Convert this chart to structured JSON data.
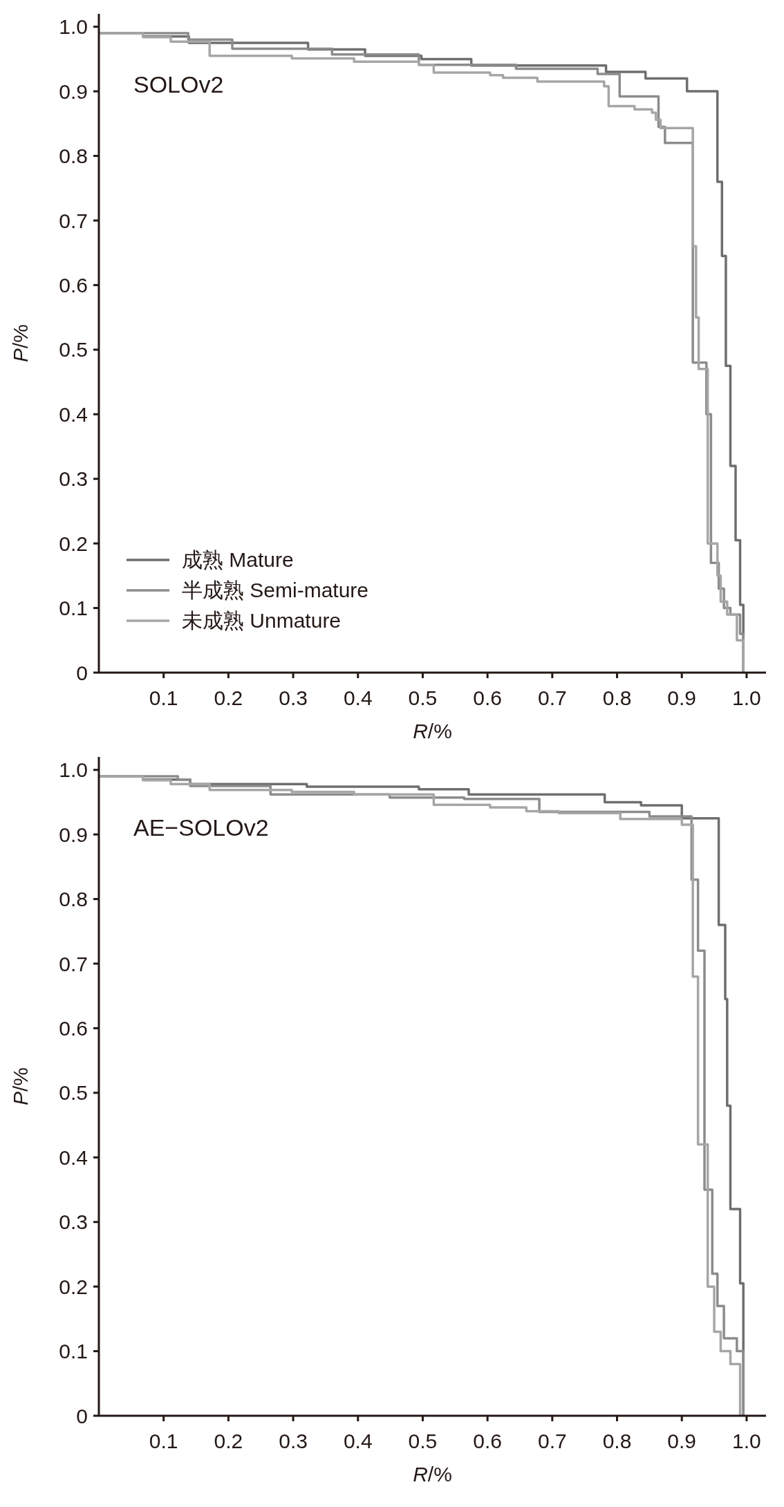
{
  "chart_data": [
    {
      "type": "step",
      "annotations": [
        "SOLOv2"
      ],
      "xlabel": "R/%",
      "ylabel": "P/%",
      "xlim": [
        0,
        1.03
      ],
      "ylim": [
        0,
        1.02
      ],
      "xticks": [
        0.1,
        0.2,
        0.3,
        0.4,
        0.5,
        0.6,
        0.7,
        0.8,
        0.9,
        {
          "value": 1,
          "label": "1.0"
        }
      ],
      "yticks": [
        0,
        0.1,
        0.2,
        0.3,
        0.4,
        0.5,
        0.6,
        0.7,
        0.8,
        0.9,
        {
          "value": 1,
          "label": "1.0"
        }
      ],
      "legend": "bottom left",
      "grid": false,
      "marker": "none",
      "line_style": "solid",
      "series": [
        {
          "name": "成熟 Mature",
          "color": "#6e6e6e",
          "x": [
            0,
            0.068,
            0.139,
            0.323,
            0.411,
            0.498,
            0.575,
            0.783,
            0.844,
            0.908,
            0.955,
            0.962,
            0.968,
            0.975,
            0.983,
            0.99,
            0.995
          ],
          "values": [
            0.99,
            0.985,
            0.975,
            0.965,
            0.955,
            0.95,
            0.94,
            0.93,
            0.92,
            0.9,
            0.76,
            0.645,
            0.475,
            0.32,
            0.205,
            0.105,
            0
          ]
        },
        {
          "name": "半成熟 Semi-mature",
          "color": "#8c8c8c",
          "x": [
            0,
            0.138,
            0.206,
            0.36,
            0.494,
            0.644,
            0.77,
            0.804,
            0.864,
            0.874,
            0.917,
            0.938,
            0.945,
            0.957,
            0.965,
            0.975,
            0.99,
            0.995
          ],
          "values": [
            0.99,
            0.98,
            0.966,
            0.957,
            0.941,
            0.935,
            0.927,
            0.892,
            0.845,
            0.82,
            0.48,
            0.4,
            0.17,
            0.13,
            0.1,
            0.09,
            0.06,
            0
          ]
        },
        {
          "name": "未成熟 Unmature",
          "color": "#a6a6a6",
          "x": [
            0,
            0.068,
            0.111,
            0.171,
            0.298,
            0.394,
            0.494,
            0.517,
            0.604,
            0.624,
            0.677,
            0.78,
            0.787,
            0.827,
            0.854,
            0.86,
            0.867,
            0.917,
            0.922,
            0.926,
            0.94,
            0.955,
            0.96,
            0.97,
            0.985,
            0.995
          ],
          "values": [
            0.99,
            0.984,
            0.977,
            0.955,
            0.951,
            0.946,
            0.941,
            0.929,
            0.925,
            0.921,
            0.915,
            0.908,
            0.877,
            0.872,
            0.867,
            0.856,
            0.843,
            0.66,
            0.55,
            0.47,
            0.2,
            0.15,
            0.11,
            0.09,
            0.05,
            0
          ]
        }
      ]
    },
    {
      "type": "step",
      "annotations": [
        "AE−SOLOv2"
      ],
      "xlabel": "R/%",
      "ylabel": "P/%",
      "xlim": [
        0,
        1.03
      ],
      "ylim": [
        0,
        1.02
      ],
      "xticks": [
        0.1,
        0.2,
        0.3,
        0.4,
        0.5,
        0.6,
        0.7,
        0.8,
        0.9,
        {
          "value": 1,
          "label": "1.0"
        }
      ],
      "yticks": [
        0,
        0.1,
        0.2,
        0.3,
        0.4,
        0.5,
        0.6,
        0.7,
        0.8,
        0.9,
        {
          "value": 1,
          "label": "1.0"
        }
      ],
      "grid": false,
      "marker": "none",
      "line_style": "solid",
      "series": [
        {
          "color": "#6e6e6e",
          "x": [
            0,
            0.068,
            0.141,
            0.321,
            0.494,
            0.571,
            0.781,
            0.837,
            0.9,
            0.957,
            0.967,
            0.97,
            0.975,
            0.99,
            0.995
          ],
          "values": [
            0.99,
            0.985,
            0.978,
            0.974,
            0.97,
            0.962,
            0.95,
            0.945,
            0.925,
            0.76,
            0.645,
            0.48,
            0.32,
            0.205,
            0
          ]
        },
        {
          "color": "#8c8c8c",
          "x": [
            0,
            0.122,
            0.141,
            0.265,
            0.449,
            0.564,
            0.68,
            0.85,
            0.915,
            0.925,
            0.935,
            0.947,
            0.955,
            0.965,
            0.985,
            0.995
          ],
          "values": [
            0.99,
            0.985,
            0.975,
            0.962,
            0.957,
            0.955,
            0.935,
            0.928,
            0.83,
            0.72,
            0.35,
            0.22,
            0.17,
            0.12,
            0.1,
            0
          ]
        },
        {
          "color": "#a6a6a6",
          "x": [
            0,
            0.068,
            0.111,
            0.171,
            0.298,
            0.394,
            0.517,
            0.604,
            0.66,
            0.71,
            0.805,
            0.9,
            0.917,
            0.925,
            0.94,
            0.95,
            0.96,
            0.975,
            0.99
          ],
          "values": [
            0.99,
            0.984,
            0.978,
            0.969,
            0.966,
            0.962,
            0.946,
            0.942,
            0.936,
            0.933,
            0.924,
            0.915,
            0.68,
            0.42,
            0.2,
            0.13,
            0.1,
            0.08,
            0
          ]
        }
      ]
    }
  ]
}
